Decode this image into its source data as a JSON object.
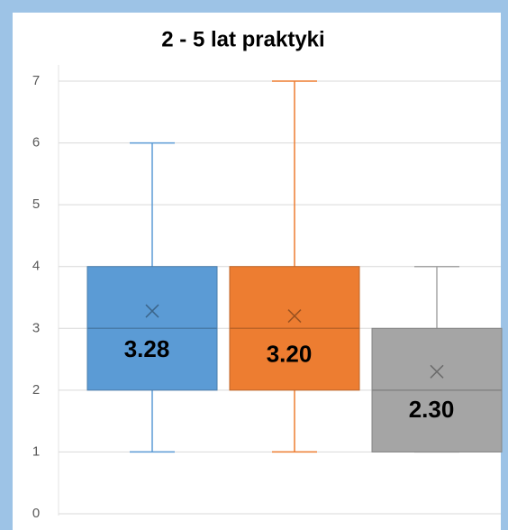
{
  "chart_data": {
    "type": "box",
    "title": "2 - 5 lat praktyki",
    "boxes": [
      {
        "color": "#5b9bd5",
        "min": 1,
        "q1": 2,
        "median": 3,
        "q3": 4,
        "max": 6,
        "mean": 3.28,
        "mean_label": "3.28"
      },
      {
        "color": "#ed7d31",
        "min": 1,
        "q1": 2,
        "median": 3,
        "q3": 4,
        "max": 7,
        "mean": 3.2,
        "mean_label": "3.20"
      },
      {
        "color": "#a5a5a5",
        "min": 1,
        "q1": 1,
        "median": 2,
        "q3": 3,
        "max": 4,
        "mean": 2.3,
        "mean_label": "2.30"
      }
    ],
    "ylim": [
      0,
      7
    ],
    "yticks": [
      0,
      1,
      2,
      3,
      4,
      5,
      6,
      7
    ],
    "grid": true
  }
}
